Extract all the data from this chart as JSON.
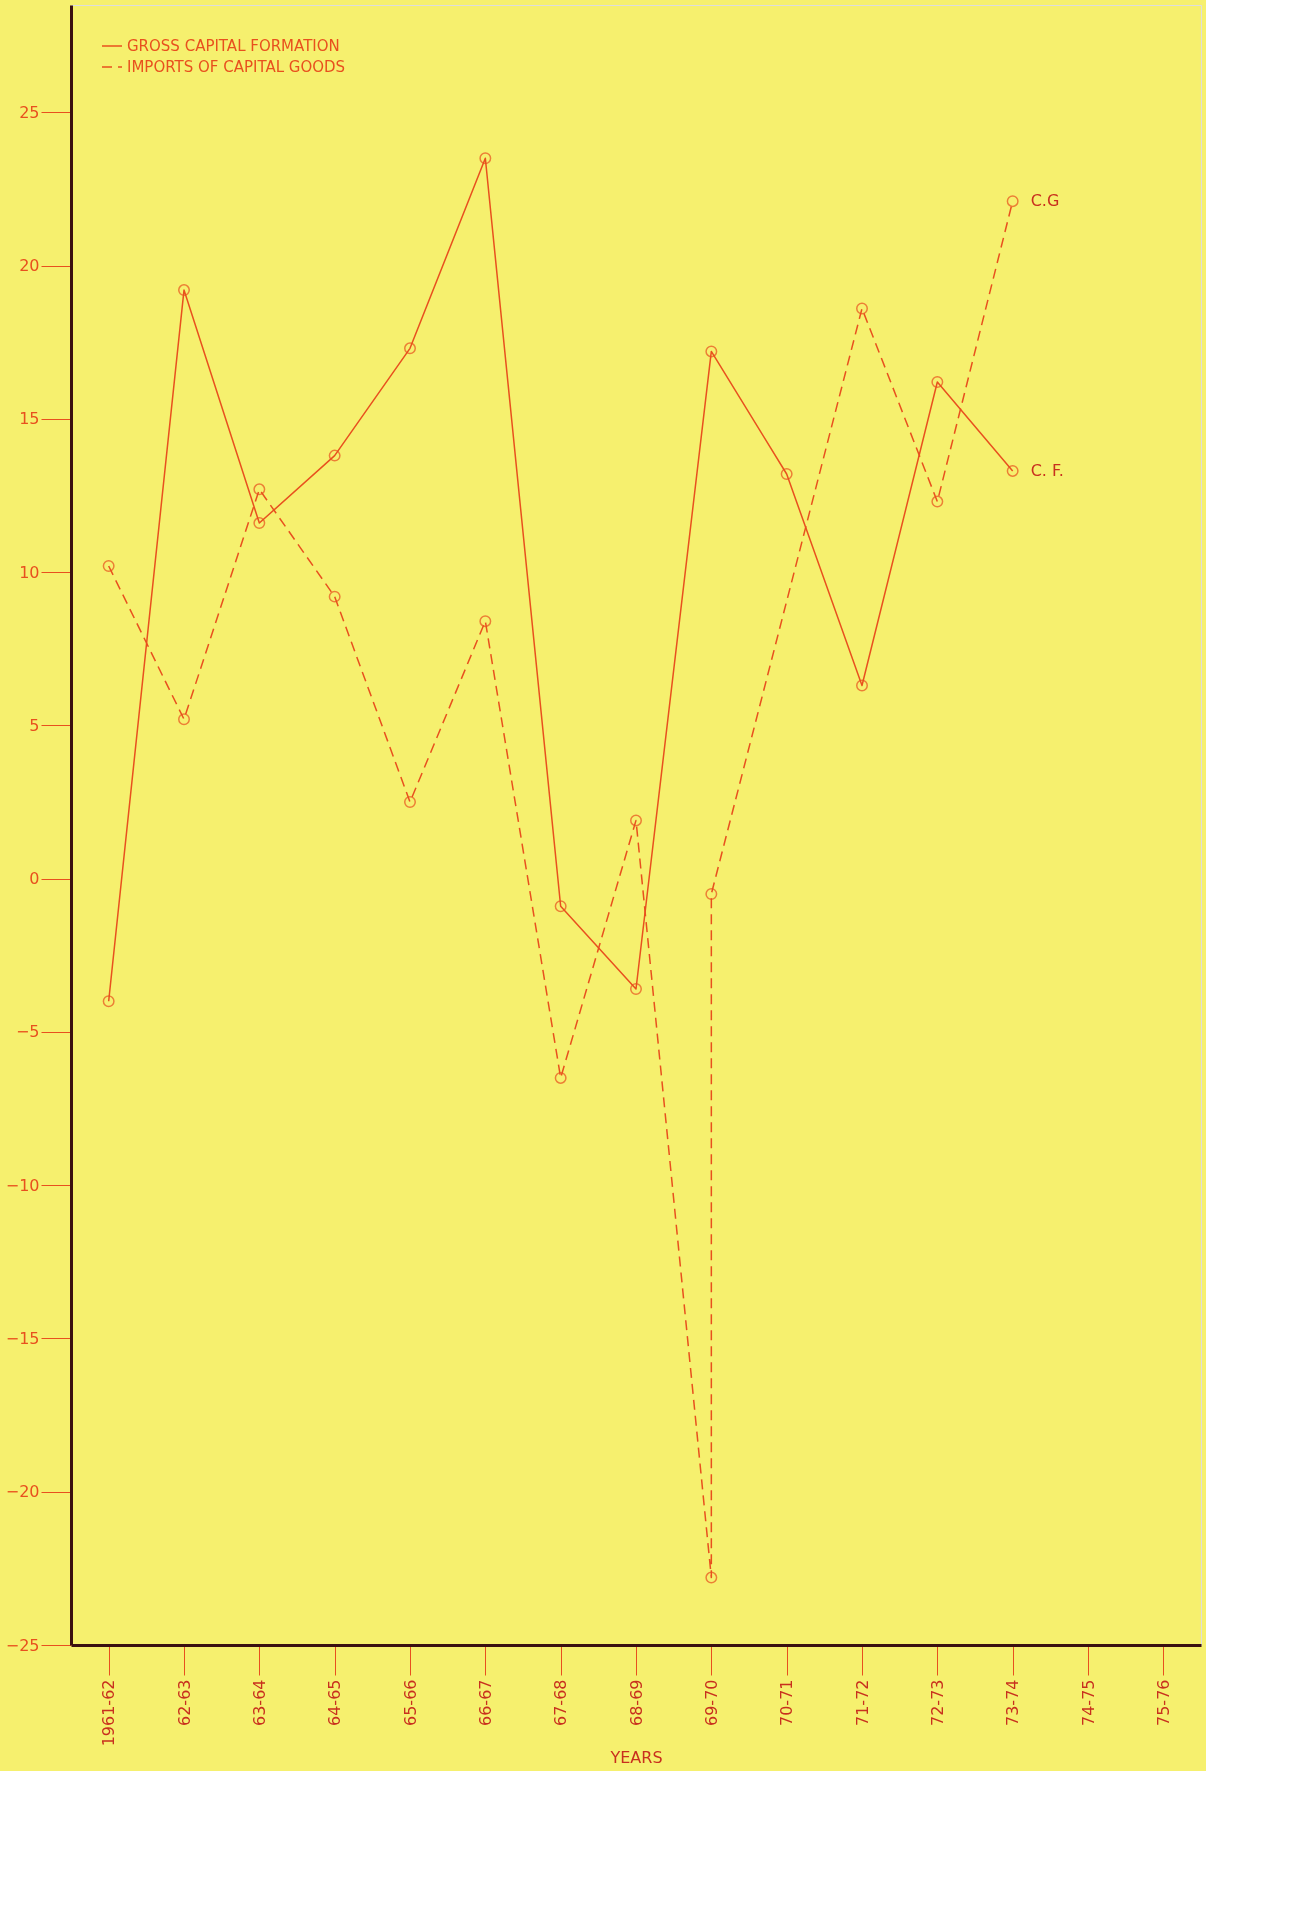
{
  "chart_data": {
    "type": "line",
    "xlabel": "YEARS",
    "categories": [
      "1961-62",
      "62-63",
      "63-64",
      "64-65",
      "65-66",
      "66-67",
      "67-68",
      "68-69",
      "69-70",
      "70-71",
      "71-72",
      "72-73",
      "73-74",
      "74-75",
      "75-76"
    ],
    "series": [
      {
        "name": "GROSS CAPITAL FORMATION",
        "color": "#e8501e",
        "line_style": "solid",
        "values": [
          -4,
          19.2,
          11.6,
          13.8,
          17.3,
          23.5,
          -0.9,
          -3.6,
          17.2,
          13.2,
          6.3,
          16.2,
          13.3,
          null,
          null
        ]
      },
      {
        "name": "IMPORTS OF CAPITAL GOODS",
        "color": "#e8501e",
        "line_style": "dashed",
        "x": [
          "1961-62",
          "62-63",
          "63-64",
          "64-65",
          "65-66",
          "66-67",
          "67-68",
          "68-69",
          "69-70",
          "69-70",
          "71-72",
          "72-73",
          "73-74"
        ],
        "values": [
          10.2,
          5.2,
          12.7,
          9.2,
          2.5,
          8.4,
          -6.5,
          1.9,
          -22.8,
          -0.5,
          18.6,
          12.3,
          22.1
        ]
      }
    ],
    "annotations": [
      {
        "text": "C.G",
        "x": "73-74",
        "y": 22.1
      },
      {
        "text": "C. F.",
        "x": "73-74",
        "y": 13.3
      }
    ],
    "ylim": [
      -25,
      28.5
    ],
    "yticks": [
      -25,
      -20,
      -15,
      -10,
      -5,
      0,
      5,
      10,
      15,
      20,
      25
    ],
    "grid": false,
    "legend": "top left",
    "marker": "circle"
  }
}
